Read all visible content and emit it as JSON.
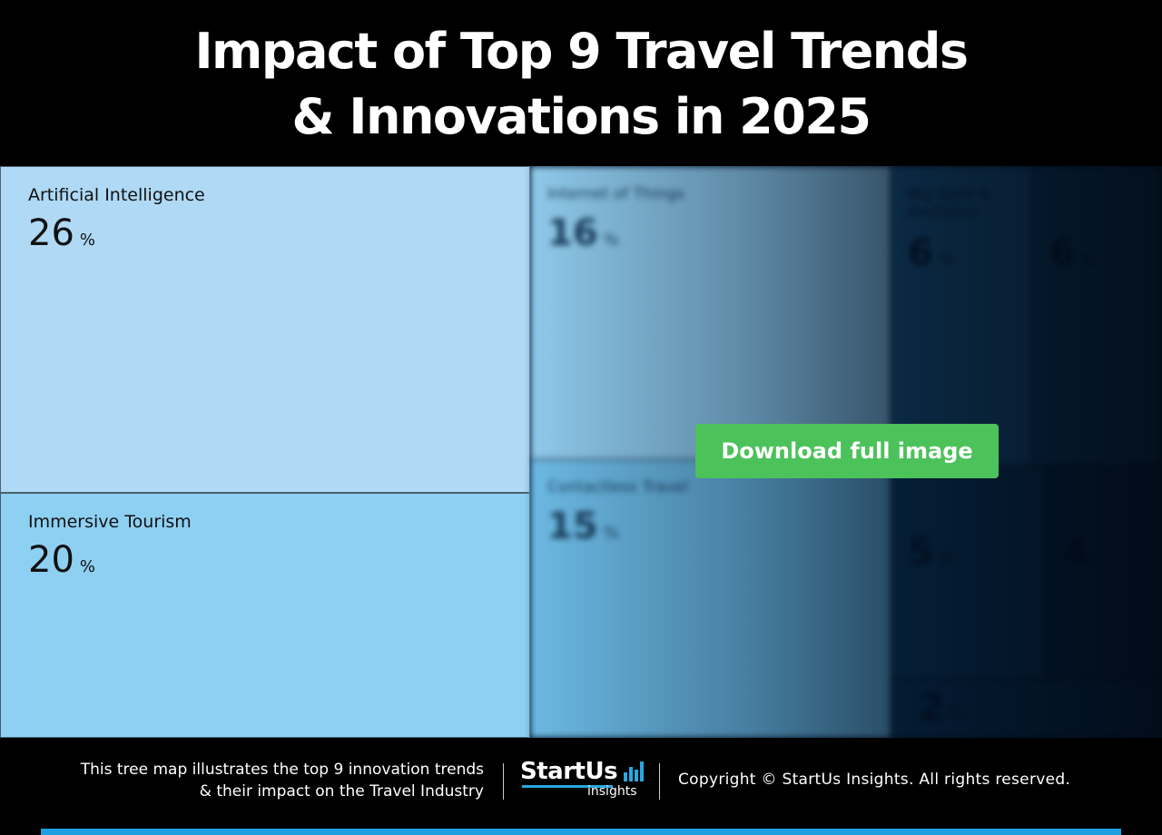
{
  "header": {
    "title_line1": "Impact of Top 9 Travel Trends",
    "title_line2": "& Innovations in 2025"
  },
  "chart_data": {
    "type": "treemap",
    "title": "Impact of Top 9 Travel Trends & Innovations in 2025",
    "unit": "%",
    "items": [
      {
        "label": "Artificial Intelligence",
        "value": 26,
        "color": "#afd9f5"
      },
      {
        "label": "Immersive Tourism",
        "value": 20,
        "color": "#8ed0f2"
      },
      {
        "label": "Internet of Things",
        "value": 16,
        "color": "#8fc9ea"
      },
      {
        "label": "Contactless Travel",
        "value": 15,
        "color": "#6cb9e3"
      },
      {
        "label": "Big Data & Analytics",
        "value": 6,
        "color": "#1f5f8c"
      },
      {
        "label": "",
        "value": 6,
        "color": "#124a72"
      },
      {
        "label": "",
        "value": 5,
        "color": "#0e4066"
      },
      {
        "label": "",
        "value": 4,
        "color": "#0a3356"
      },
      {
        "label": "",
        "value": 2,
        "color": "#0b3a5f"
      }
    ]
  },
  "download_button": {
    "label": "Download full image",
    "color": "#4cc25a"
  },
  "footer": {
    "description_line1": "This tree map illustrates the top 9 innovation trends",
    "description_line2": "& their impact on the Travel Industry",
    "logo_name": "StartUs",
    "logo_sub": "insights",
    "copyright": "Copyright © StartUs Insights. All rights reserved."
  },
  "colors": {
    "background": "#000000",
    "accent": "#1d9fe0"
  }
}
